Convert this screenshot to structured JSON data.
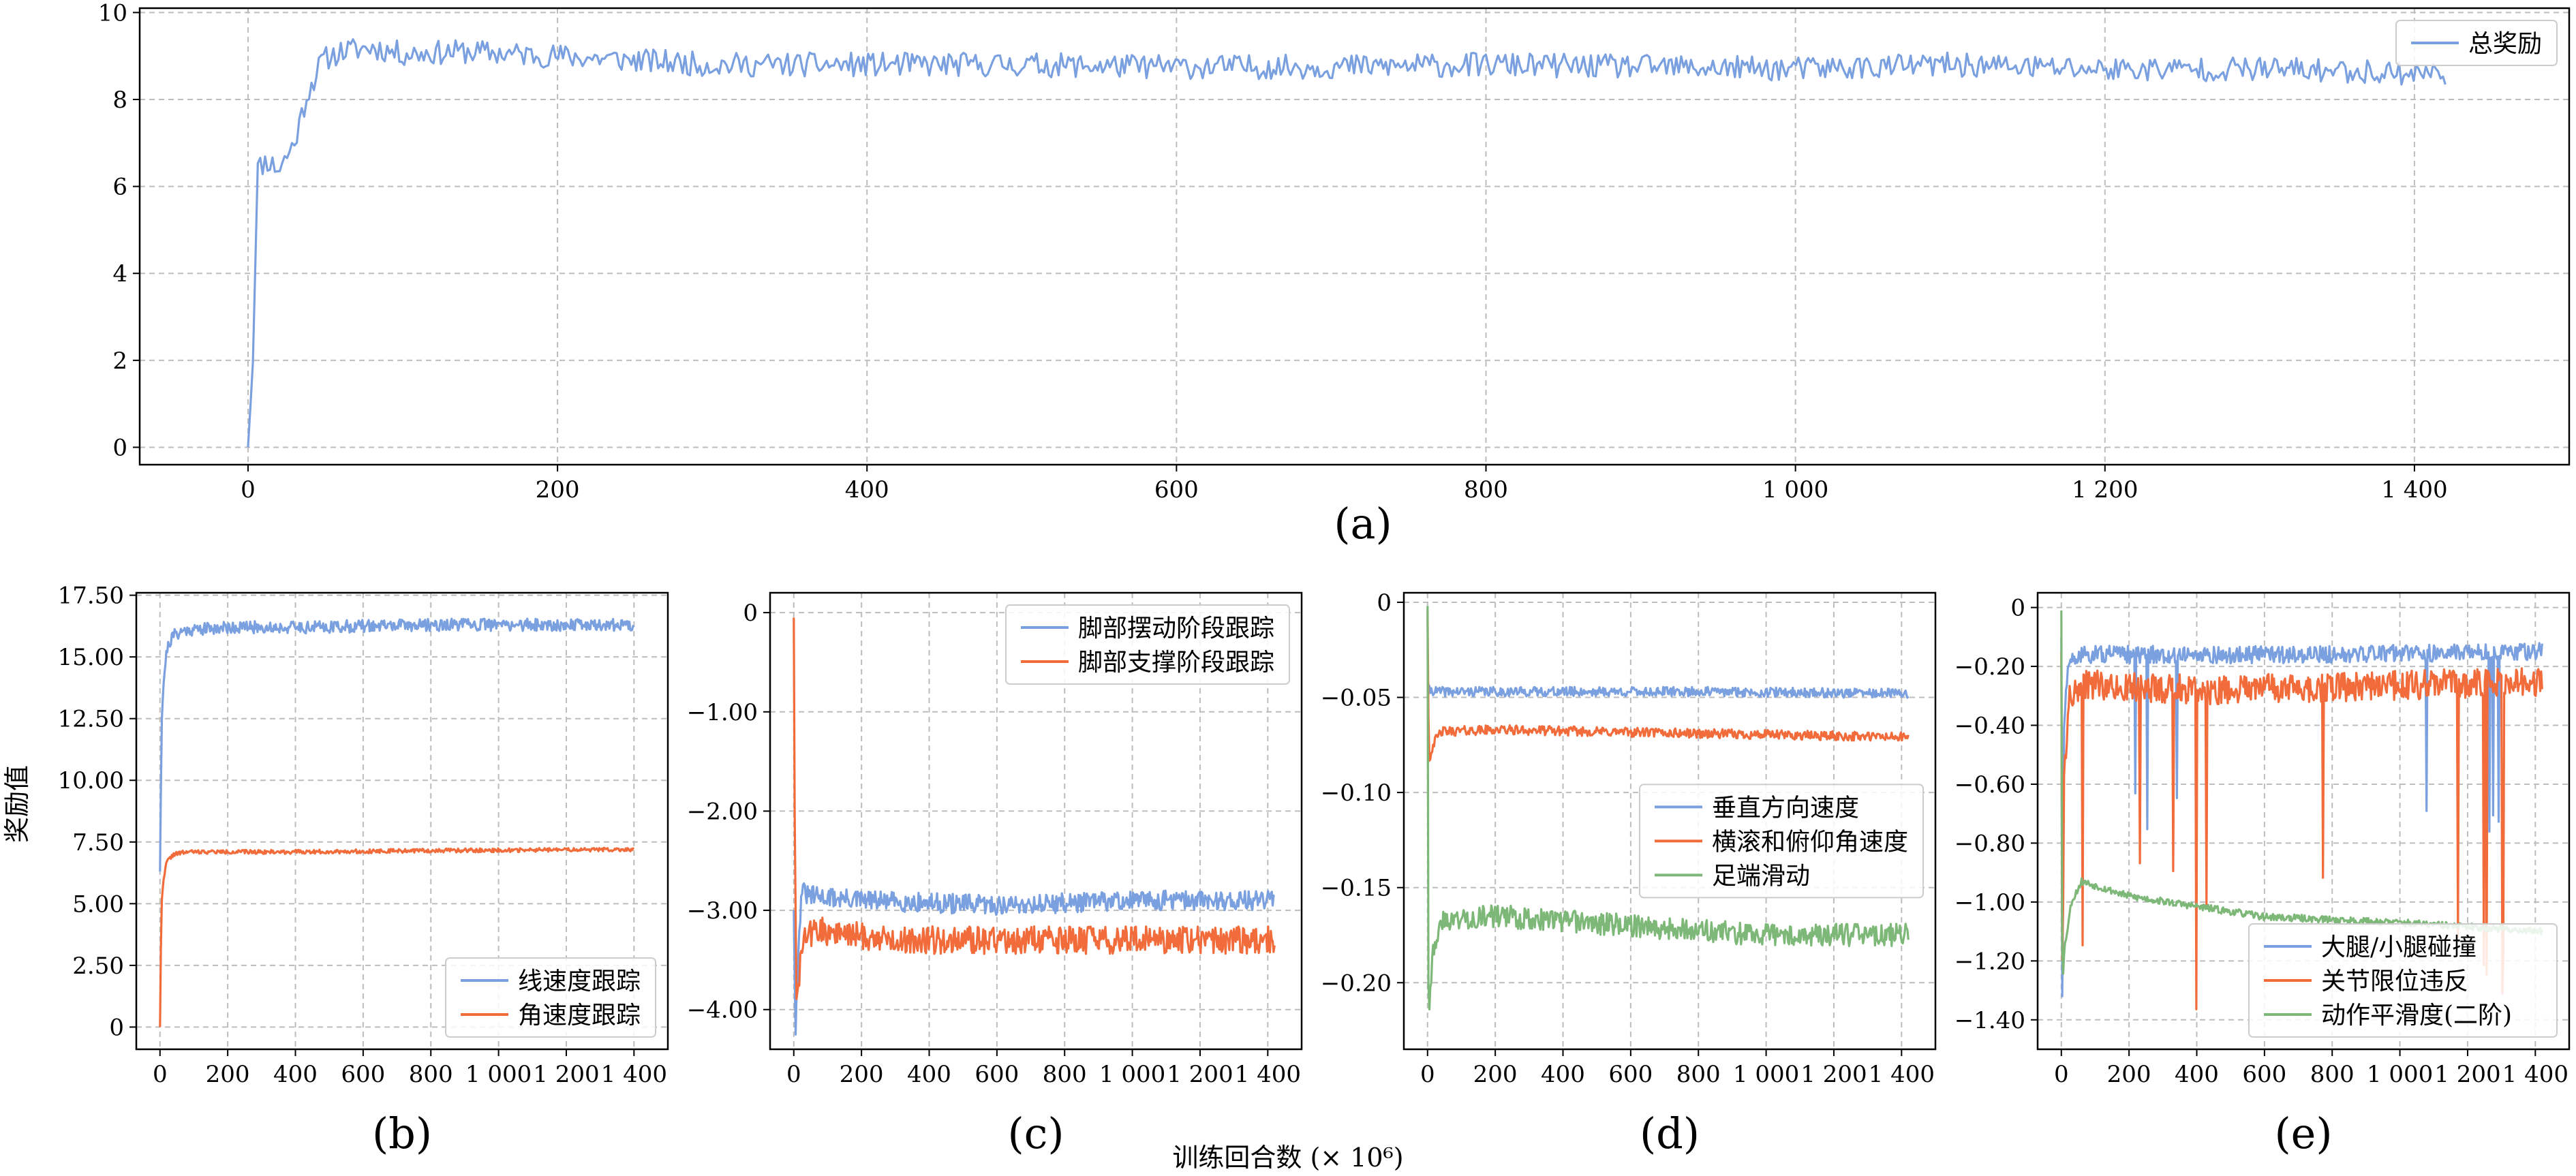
{
  "figure": {
    "xlabel": "训练回合数 (× 10⁶)",
    "ylabel": "奖励值"
  },
  "colors": {
    "blue": "#7aa0e0",
    "orange": "#f26b3a",
    "green": "#7db878"
  },
  "chart_data": [
    {
      "id": "a",
      "type": "line",
      "panel_label": "(a)",
      "xlim": [
        -70,
        1500
      ],
      "ylim": [
        -0.4,
        10.1
      ],
      "xticks": [
        0,
        200,
        400,
        600,
        800,
        1000,
        1200,
        1400
      ],
      "xtick_labels": [
        "0",
        "200",
        "400",
        "600",
        "800",
        "1 000",
        "1 200",
        "1 400"
      ],
      "yticks": [
        0,
        2,
        4,
        6,
        8,
        10
      ],
      "ytick_labels": [
        "0",
        "2",
        "4",
        "6",
        "8",
        "10"
      ],
      "grid": true,
      "legend": "top-right",
      "series": [
        {
          "name": "总奖励",
          "color": "#7aa0e0",
          "noise": 0.28,
          "seed": 11,
          "points": [
            [
              0,
              0
            ],
            [
              3,
              1.8
            ],
            [
              6,
              6.4
            ],
            [
              12,
              6.6
            ],
            [
              20,
              6.4
            ],
            [
              30,
              7.0
            ],
            [
              38,
              8.1
            ],
            [
              48,
              8.9
            ],
            [
              60,
              9.1
            ],
            [
              80,
              9.2
            ],
            [
              100,
              9.05
            ],
            [
              140,
              9.1
            ],
            [
              200,
              9.0
            ],
            [
              300,
              8.8
            ],
            [
              400,
              8.8
            ],
            [
              500,
              8.8
            ],
            [
              600,
              8.75
            ],
            [
              700,
              8.75
            ],
            [
              800,
              8.8
            ],
            [
              900,
              8.75
            ],
            [
              1000,
              8.7
            ],
            [
              1100,
              8.8
            ],
            [
              1200,
              8.7
            ],
            [
              1300,
              8.7
            ],
            [
              1420,
              8.6
            ]
          ]
        }
      ]
    },
    {
      "id": "b",
      "type": "line",
      "panel_label": "(b)",
      "xlim": [
        -70,
        1500
      ],
      "ylim": [
        -0.9,
        17.6
      ],
      "xticks": [
        0,
        200,
        400,
        600,
        800,
        1000,
        1200,
        1400
      ],
      "xtick_labels": [
        "0",
        "200",
        "400",
        "600",
        "800",
        "1 000",
        "1 200",
        "1 400"
      ],
      "yticks": [
        0,
        2.5,
        5,
        7.5,
        10,
        12.5,
        15,
        17.5
      ],
      "ytick_labels": [
        "0",
        "2.50",
        "5.00",
        "7.50",
        "10.00",
        "12.50",
        "15.00",
        "17.50"
      ],
      "grid": true,
      "legend": "lower-right",
      "series": [
        {
          "name": "线速度跟踪",
          "color": "#7aa0e0",
          "noise": 0.25,
          "seed": 21,
          "points": [
            [
              0,
              6.3
            ],
            [
              5,
              12.5
            ],
            [
              12,
              14.3
            ],
            [
              22,
              15.4
            ],
            [
              40,
              15.9
            ],
            [
              80,
              16.1
            ],
            [
              200,
              16.2
            ],
            [
              400,
              16.2
            ],
            [
              800,
              16.3
            ],
            [
              1400,
              16.3
            ]
          ]
        },
        {
          "name": "角速度跟踪",
          "color": "#f26b3a",
          "noise": 0.08,
          "seed": 22,
          "points": [
            [
              0,
              0
            ],
            [
              4,
              4.8
            ],
            [
              10,
              6.0
            ],
            [
              20,
              6.7
            ],
            [
              40,
              7.0
            ],
            [
              80,
              7.1
            ],
            [
              400,
              7.1
            ],
            [
              800,
              7.15
            ],
            [
              1400,
              7.2
            ]
          ]
        }
      ]
    },
    {
      "id": "c",
      "type": "line",
      "panel_label": "(c)",
      "xlim": [
        -70,
        1500
      ],
      "ylim": [
        -4.4,
        0.2
      ],
      "xticks": [
        0,
        200,
        400,
        600,
        800,
        1000,
        1200,
        1400
      ],
      "xtick_labels": [
        "0",
        "200",
        "400",
        "600",
        "800",
        "1 000",
        "1 200",
        "1 400"
      ],
      "yticks": [
        -4,
        -3,
        -2,
        -1,
        0
      ],
      "ytick_labels": [
        "−4.00",
        "−3.00",
        "−2.00",
        "−1.00",
        "0"
      ],
      "grid": true,
      "legend": "top-right",
      "series": [
        {
          "name": "脚部摆动阶段跟踪",
          "color": "#7aa0e0",
          "noise": 0.1,
          "seed": 31,
          "points": [
            [
              0,
              -3.0
            ],
            [
              5,
              -4.2
            ],
            [
              12,
              -3.6
            ],
            [
              22,
              -2.8
            ],
            [
              40,
              -2.85
            ],
            [
              200,
              -2.9
            ],
            [
              600,
              -2.95
            ],
            [
              1000,
              -2.9
            ],
            [
              1420,
              -2.9
            ]
          ]
        },
        {
          "name": "脚部支撑阶段跟踪",
          "color": "#f26b3a",
          "noise": 0.14,
          "seed": 32,
          "points": [
            [
              0,
              -0.05
            ],
            [
              3,
              -2.2
            ],
            [
              8,
              -4.0
            ],
            [
              15,
              -3.7
            ],
            [
              28,
              -3.3
            ],
            [
              60,
              -3.2
            ],
            [
              300,
              -3.3
            ],
            [
              800,
              -3.3
            ],
            [
              1420,
              -3.3
            ]
          ]
        }
      ]
    },
    {
      "id": "d",
      "type": "line",
      "panel_label": "(d)",
      "xlim": [
        -70,
        1500
      ],
      "ylim": [
        -0.235,
        0.005
      ],
      "xticks": [
        0,
        200,
        400,
        600,
        800,
        1000,
        1200,
        1400
      ],
      "xtick_labels": [
        "0",
        "200",
        "400",
        "600",
        "800",
        "1 000",
        "1 200",
        "1 400"
      ],
      "yticks": [
        -0.2,
        -0.15,
        -0.1,
        -0.05,
        0
      ],
      "ytick_labels": [
        "−0.20",
        "−0.15",
        "−0.10",
        "−0.05",
        "0"
      ],
      "grid": true,
      "legend": "center-right",
      "series": [
        {
          "name": "垂直方向速度",
          "color": "#7aa0e0",
          "noise": 0.0025,
          "seed": 41,
          "points": [
            [
              0,
              -0.04
            ],
            [
              5,
              -0.046
            ],
            [
              30,
              -0.047
            ],
            [
              200,
              -0.047
            ],
            [
              800,
              -0.047
            ],
            [
              1420,
              -0.048
            ]
          ]
        },
        {
          "name": "横滚和俯仰角速度",
          "color": "#f26b3a",
          "noise": 0.0025,
          "seed": 42,
          "points": [
            [
              0,
              -0.005
            ],
            [
              4,
              -0.085
            ],
            [
              15,
              -0.075
            ],
            [
              40,
              -0.068
            ],
            [
              200,
              -0.067
            ],
            [
              800,
              -0.069
            ],
            [
              1420,
              -0.071
            ]
          ]
        },
        {
          "name": "足端滑动",
          "color": "#7db878",
          "noise": 0.006,
          "seed": 43,
          "points": [
            [
              0,
              -0.002
            ],
            [
              3,
              -0.222
            ],
            [
              8,
              -0.2
            ],
            [
              20,
              -0.178
            ],
            [
              50,
              -0.167
            ],
            [
              200,
              -0.165
            ],
            [
              600,
              -0.17
            ],
            [
              1000,
              -0.175
            ],
            [
              1420,
              -0.175
            ]
          ]
        }
      ]
    },
    {
      "id": "e",
      "type": "line",
      "panel_label": "(e)",
      "xlim": [
        -70,
        1500
      ],
      "ylim": [
        -1.5,
        0.05
      ],
      "xticks": [
        0,
        200,
        400,
        600,
        800,
        1000,
        1200,
        1400
      ],
      "xtick_labels": [
        "0",
        "200",
        "400",
        "600",
        "800",
        "1 000",
        "1 200",
        "1 400"
      ],
      "yticks": [
        -1.4,
        -1.2,
        -1.0,
        -0.8,
        -0.6,
        -0.4,
        -0.2,
        0
      ],
      "ytick_labels": [
        "−1.40",
        "−1.20",
        "−1.00",
        "−0.80",
        "−0.60",
        "−0.40",
        "−0.20",
        "0"
      ],
      "grid": true,
      "legend": "lower-right",
      "series": [
        {
          "name": "大腿/小腿碰撞",
          "color": "#7aa0e0",
          "noise": 0.03,
          "seed": 51,
          "points": [
            [
              0,
              -0.1
            ],
            [
              3,
              -1.44
            ],
            [
              8,
              -0.4
            ],
            [
              20,
              -0.2
            ],
            [
              60,
              -0.16
            ],
            [
              400,
              -0.16
            ],
            [
              800,
              -0.16
            ],
            [
              1420,
              -0.15
            ]
          ]
        },
        {
          "name": "关节限位违反",
          "color": "#f26b3a",
          "noise": 0.05,
          "seed": 52,
          "points": [
            [
              0,
              -0.15
            ],
            [
              3,
              -1.3
            ],
            [
              8,
              -0.6
            ],
            [
              25,
              -0.3
            ],
            [
              80,
              -0.26
            ],
            [
              400,
              -0.28
            ],
            [
              800,
              -0.27
            ],
            [
              1420,
              -0.25
            ]
          ]
        },
        {
          "name": "动作平滑度(二阶)",
          "color": "#7db878",
          "noise": 0.012,
          "seed": 53,
          "points": [
            [
              0,
              -0.01
            ],
            [
              3,
              -1.28
            ],
            [
              10,
              -1.15
            ],
            [
              30,
              -1.0
            ],
            [
              60,
              -0.93
            ],
            [
              200,
              -0.98
            ],
            [
              600,
              -1.05
            ],
            [
              1000,
              -1.07
            ],
            [
              1420,
              -1.1
            ]
          ]
        }
      ]
    }
  ]
}
